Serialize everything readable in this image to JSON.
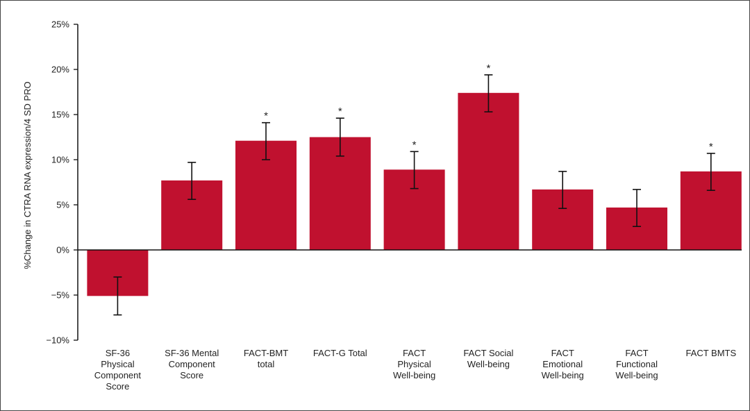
{
  "chart_data": {
    "type": "bar",
    "title": "",
    "xlabel": "",
    "ylabel": "%Change in CTRA RNA expression/4 SD PRO",
    "ylim": [
      -10,
      25
    ],
    "yticks": [
      -10,
      -5,
      0,
      5,
      10,
      15,
      20,
      25
    ],
    "ytick_labels": [
      "−10%",
      "−5%",
      "0%",
      "5%",
      "10%",
      "15%",
      "20%",
      "25%"
    ],
    "grid": false,
    "legend": "none",
    "bar_color": "#c0112f",
    "categories": [
      "SF-36 Physical Component Score",
      "SF-36 Mental Component Score",
      "FACT-BMT total",
      "FACT-G Total",
      "FACT Physical Well-being",
      "FACT Social Well-being",
      "FACT Emotional Well-being",
      "FACT Functional Well-being",
      "FACT BMTS"
    ],
    "category_lines": [
      [
        "SF-36",
        "Physical",
        "Component",
        "Score"
      ],
      [
        "SF-36 Mental",
        "Component",
        "Score"
      ],
      [
        "FACT-BMT",
        "total"
      ],
      [
        "FACT-G Total"
      ],
      [
        "FACT",
        "Physical",
        "Well-being"
      ],
      [
        "FACT Social",
        "Well-being"
      ],
      [
        "FACT",
        "Emotional",
        "Well-being"
      ],
      [
        "FACT",
        "Functional",
        "Well-being"
      ],
      [
        "FACT BMTS"
      ]
    ],
    "values": [
      -5.1,
      7.7,
      12.1,
      12.5,
      8.9,
      17.4,
      6.7,
      4.7,
      8.7
    ],
    "error_low": [
      -7.2,
      5.6,
      10.0,
      10.4,
      6.8,
      15.3,
      4.6,
      2.6,
      6.6
    ],
    "error_high": [
      -3.0,
      9.7,
      14.1,
      14.6,
      10.9,
      19.4,
      8.7,
      6.7,
      10.7
    ],
    "significant_label": "*",
    "significant": [
      false,
      false,
      true,
      true,
      true,
      true,
      false,
      false,
      true
    ]
  }
}
